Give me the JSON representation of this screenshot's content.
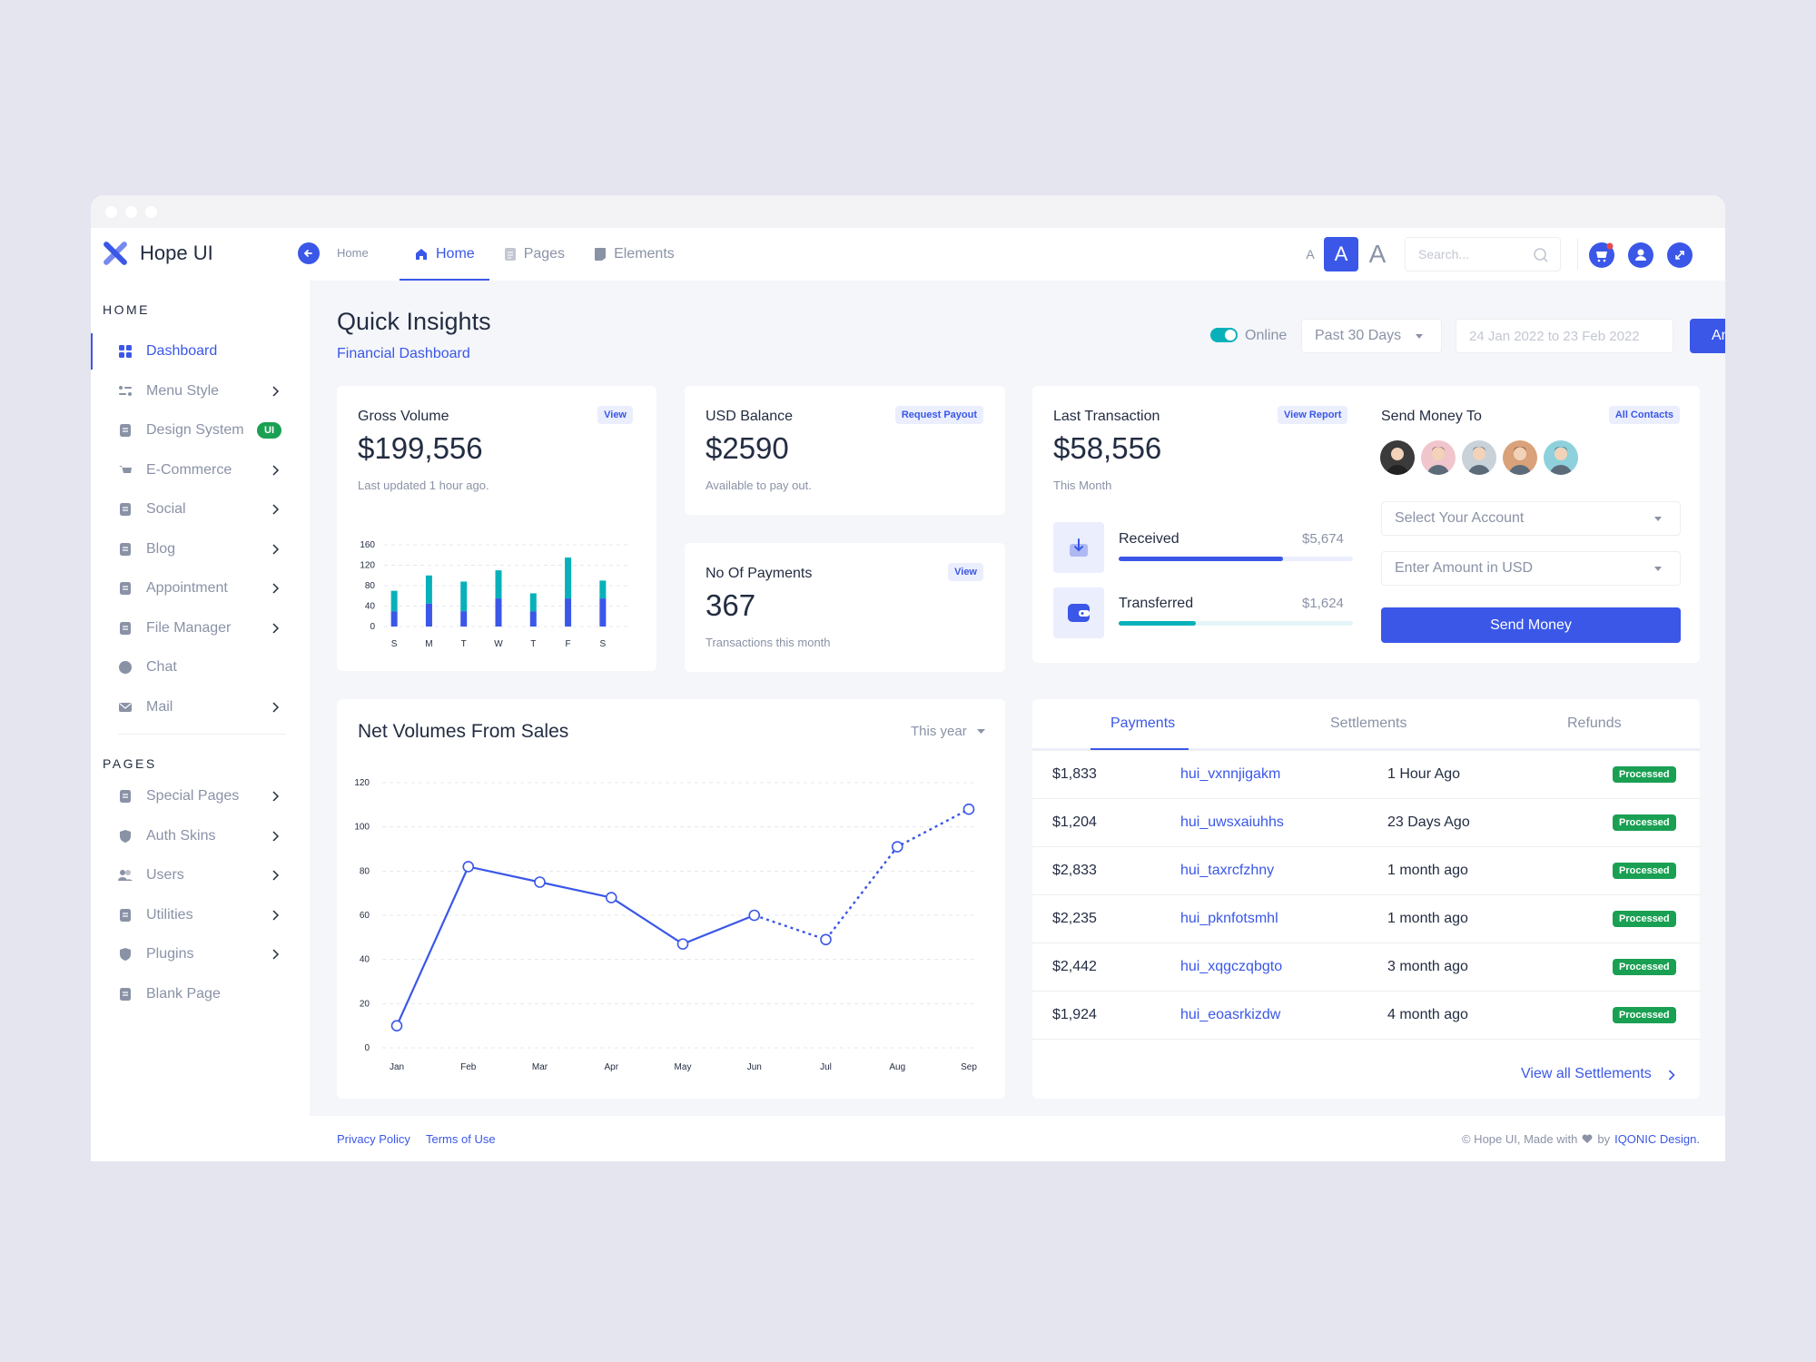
{
  "app": {
    "name": "Hope UI"
  },
  "header": {
    "breadcrumb": "Home",
    "nav": [
      "Home",
      "Pages",
      "Elements"
    ],
    "font_sizes": [
      "A",
      "A",
      "A"
    ],
    "search_placeholder": "Search..."
  },
  "sidebar": {
    "home_title": "HOME",
    "pages_title": "PAGES",
    "home_items": [
      {
        "label": "Dashboard",
        "icon": "grid-icon"
      },
      {
        "label": "Menu Style",
        "icon": "menu-style-icon"
      },
      {
        "label": "Design System",
        "icon": "palette-icon",
        "badge": "UI"
      },
      {
        "label": "E-Commerce",
        "icon": "cart-icon"
      },
      {
        "label": "Social",
        "icon": "social-icon"
      },
      {
        "label": "Blog",
        "icon": "document-icon"
      },
      {
        "label": "Appointment",
        "icon": "calendar-icon"
      },
      {
        "label": "File Manager",
        "icon": "file-icon"
      },
      {
        "label": "Chat",
        "icon": "chat-icon"
      },
      {
        "label": "Mail",
        "icon": "mail-icon"
      }
    ],
    "pages_items": [
      {
        "label": "Special Pages",
        "icon": "page-icon"
      },
      {
        "label": "Auth Skins",
        "icon": "shield-icon"
      },
      {
        "label": "Users",
        "icon": "users-icon"
      },
      {
        "label": "Utilities",
        "icon": "utility-icon"
      },
      {
        "label": "Plugins",
        "icon": "plugin-icon"
      },
      {
        "label": "Blank Page",
        "icon": "blank-page-icon"
      }
    ]
  },
  "page": {
    "title": "Quick Insights",
    "subtitle": "Financial Dashboard",
    "online_label": "Online",
    "period": "Past 30 Days",
    "date_range": "24 Jan 2022 to 23 Feb 2022",
    "analytics_button": "Analytics"
  },
  "gross": {
    "title": "Gross Volume",
    "action": "View",
    "value": "$199,556",
    "note": "Last updated 1 hour ago."
  },
  "usd": {
    "title": "USD Balance",
    "action": "Request Payout",
    "value": "$2590",
    "note": "Available to pay out."
  },
  "payments_count": {
    "title": "No Of Payments",
    "action": "View",
    "value": "367",
    "note": "Transactions this month"
  },
  "last_tx": {
    "title": "Last Transaction",
    "action": "View Report",
    "value": "$58,556",
    "note": "This Month",
    "received_label": "Received",
    "received_value": "$5,674",
    "received_fraction": 0.7,
    "transferred_label": "Transferred",
    "transferred_value": "$1,624",
    "transferred_fraction": 0.33
  },
  "send": {
    "title": "Send Money To",
    "action": "All Contacts",
    "account_placeholder": "Select Your Account",
    "amount_placeholder": "Enter Amount in USD",
    "button": "Send Money",
    "avatar_colors": [
      "#3b3b3b",
      "#f0c5cc",
      "#c9d1d9",
      "#d9a27a",
      "#8ed1dc"
    ]
  },
  "net": {
    "title": "Net Volumes From Sales",
    "period": "This year"
  },
  "tabs": [
    "Payments",
    "Settlements",
    "Refunds"
  ],
  "payments": [
    {
      "amount": "$1,833",
      "id": "hui_vxnnjigakm",
      "time": "1 Hour Ago",
      "status": "Processed"
    },
    {
      "amount": "$1,204",
      "id": "hui_uwsxaiuhhs",
      "time": "23 Days Ago",
      "status": "Processed"
    },
    {
      "amount": "$2,833",
      "id": "hui_taxrcfzhny",
      "time": "1 month ago",
      "status": "Processed"
    },
    {
      "amount": "$2,235",
      "id": "hui_pknfotsmhl",
      "time": "1 month ago",
      "status": "Processed"
    },
    {
      "amount": "$2,442",
      "id": "hui_xqgczqbgto",
      "time": "3 month ago",
      "status": "Processed"
    },
    {
      "amount": "$1,924",
      "id": "hui_eoasrkizdw",
      "time": "4 month ago",
      "status": "Processed"
    }
  ],
  "view_all": "View all Settlements",
  "footer": {
    "privacy": "Privacy Policy",
    "terms": "Terms of Use",
    "copy_prefix": "© Hope UI, Made with",
    "copy_by": "by",
    "brand": "IQONIC Design."
  },
  "colors": {
    "primary": "#3a57e8",
    "teal": "#08b1ba",
    "success": "#1aa053"
  },
  "chart_data": [
    {
      "type": "bar",
      "categories": [
        "S",
        "M",
        "T",
        "W",
        "T",
        "F",
        "S"
      ],
      "series": [
        {
          "values": [
            30,
            45,
            30,
            55,
            30,
            55,
            55
          ]
        },
        {
          "values": [
            40,
            55,
            58,
            55,
            35,
            80,
            35
          ]
        }
      ],
      "yticks": [
        0,
        40,
        80,
        120,
        160
      ],
      "ylim": [
        0,
        160
      ],
      "stacked": true
    },
    {
      "type": "line",
      "categories": [
        "Jan",
        "Feb",
        "Mar",
        "Apr",
        "May",
        "Jun",
        "Jul",
        "Aug",
        "Sep"
      ],
      "values": [
        10,
        82,
        75,
        68,
        47,
        60,
        49,
        91,
        108
      ],
      "dashed_from_index": 5,
      "yticks": [
        0,
        20,
        40,
        60,
        80,
        100,
        120
      ],
      "ylim": [
        0,
        120
      ]
    }
  ]
}
